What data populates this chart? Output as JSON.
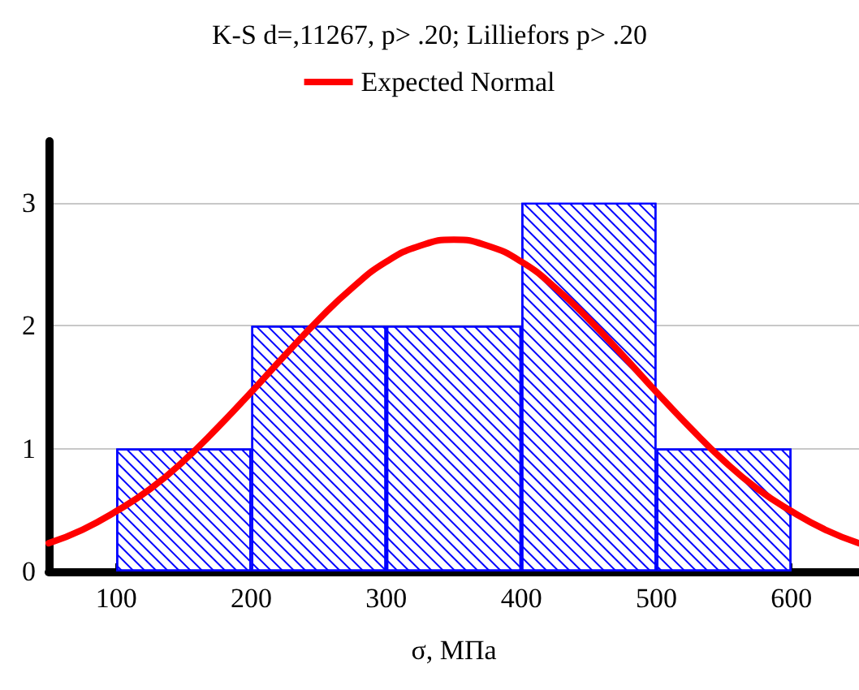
{
  "chart_data": {
    "type": "histogram",
    "title": "K-S d=,11267, p> .20; Lilliefors p> .20",
    "xlabel": "σ, МПа",
    "bins": [
      100,
      200,
      300,
      400,
      500,
      600
    ],
    "values": [
      1,
      2,
      2,
      3,
      1
    ],
    "color": "#0000ff",
    "series": [
      {
        "type": "line",
        "name": "Expected Normal",
        "color": "#ff0000",
        "x": [
          50,
          75,
          100,
          125,
          150,
          175,
          200,
          225,
          250,
          275,
          300,
          325,
          350,
          375,
          400,
          425,
          450,
          475,
          500,
          525,
          550,
          575,
          600,
          625,
          650
        ],
        "values": [
          0.23,
          0.34,
          0.49,
          0.67,
          0.9,
          1.17,
          1.46,
          1.76,
          2.05,
          2.31,
          2.52,
          2.65,
          2.7,
          2.65,
          2.52,
          2.31,
          2.05,
          1.76,
          1.46,
          1.17,
          0.9,
          0.67,
          0.49,
          0.34,
          0.23
        ]
      }
    ],
    "xlim": [
      50,
      650
    ],
    "xticks": [
      100,
      200,
      300,
      400,
      500,
      600
    ],
    "ylim": [
      0,
      3.5
    ],
    "yticks": [
      0,
      1,
      2,
      3
    ],
    "grid": "y",
    "legend": "top",
    "marker": "none",
    "line_style": "solid"
  }
}
